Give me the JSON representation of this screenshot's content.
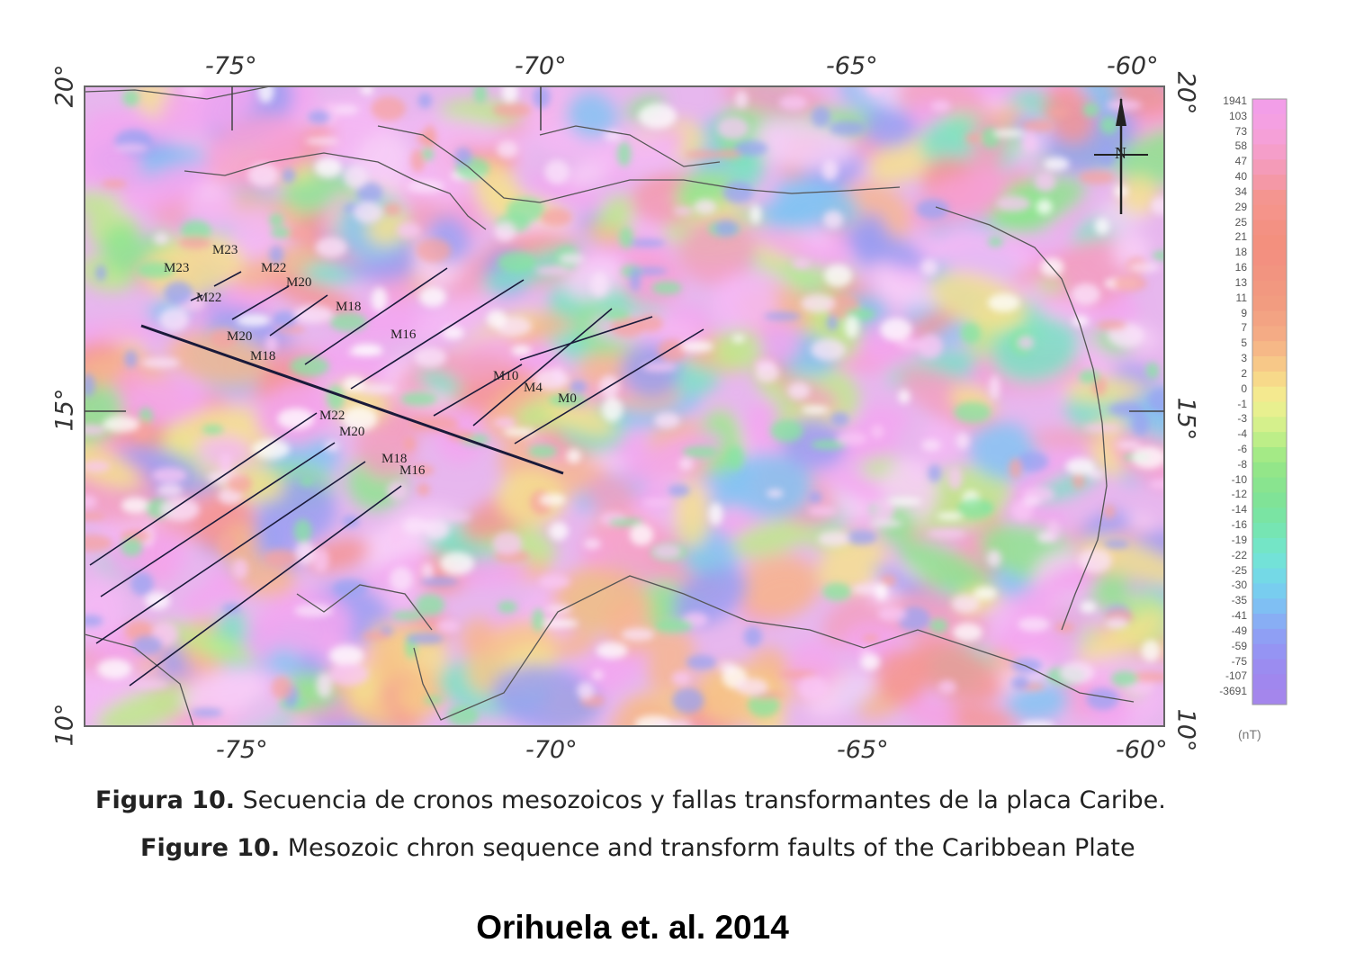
{
  "map": {
    "lon_ticks": [
      "-75°",
      "-70°",
      "-65°",
      "-60°"
    ],
    "lat_ticks": [
      "20°",
      "15°",
      "10°"
    ],
    "north_arrow_label": "N",
    "colors": {
      "frame": "#555555",
      "fault_line": "#1a1a3a",
      "coast": "#555555"
    },
    "colorbar": {
      "unit": "(nT)",
      "labels": [
        "1941",
        "103",
        "73",
        "58",
        "47",
        "40",
        "34",
        "29",
        "25",
        "21",
        "18",
        "16",
        "13",
        "11",
        "9",
        "7",
        "5",
        "3",
        "2",
        "0",
        "-1",
        "-3",
        "-4",
        "-6",
        "-8",
        "-10",
        "-12",
        "-14",
        "-16",
        "-19",
        "-22",
        "-25",
        "-30",
        "-35",
        "-41",
        "-49",
        "-59",
        "-75",
        "-107",
        "-3691"
      ],
      "colors": [
        "#f29ee8",
        "#f4a0e2",
        "#f5a0d8",
        "#f59ec9",
        "#f49bb8",
        "#f498a6",
        "#f49590",
        "#f5948a",
        "#f39183",
        "#f3907e",
        "#f39080",
        "#f29480",
        "#f29880",
        "#f29c80",
        "#f3a383",
        "#f4ab85",
        "#f6b887",
        "#f7c888",
        "#f7d98a",
        "#f4e98f",
        "#e8f08f",
        "#d5f08c",
        "#bdee88",
        "#a4ea86",
        "#93e689",
        "#89e48f",
        "#80e397",
        "#7ae4a3",
        "#76e5b3",
        "#74e5c6",
        "#73e2d8",
        "#74d9e6",
        "#78cdef",
        "#7fbff3",
        "#88aef4",
        "#8f9ff4",
        "#9594f3",
        "#9b8cf0",
        "#a087ee",
        "#a486ec"
      ]
    },
    "chron_labels": [
      {
        "text": "M23"
      },
      {
        "text": "M23"
      },
      {
        "text": "M22"
      },
      {
        "text": "M22"
      },
      {
        "text": "M20"
      },
      {
        "text": "M18"
      },
      {
        "text": "M20"
      },
      {
        "text": "M18"
      },
      {
        "text": "M16"
      },
      {
        "text": "M10"
      },
      {
        "text": "M4"
      },
      {
        "text": "M0"
      },
      {
        "text": "M22"
      },
      {
        "text": "M20"
      },
      {
        "text": "M18"
      },
      {
        "text": "M16"
      }
    ]
  },
  "caption": {
    "es_prefix": "Figura 10.",
    "es_text": " Secuencia de cronos mesozoicos y fallas transformantes de la placa Caribe.",
    "en_prefix": "Figure 10.",
    "en_text": " Mesozoic chron sequence and transform faults of the Caribbean Plate"
  },
  "credit": "Orihuela et. al. 2014"
}
